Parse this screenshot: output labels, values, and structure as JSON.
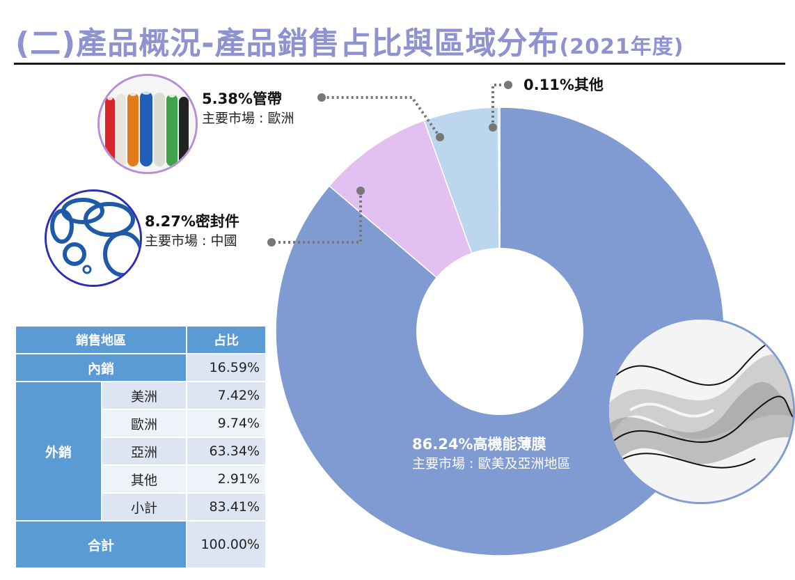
{
  "title": {
    "main": "(二)產品概況-產品銷售占比與區域分布",
    "year": "(2021年度)"
  },
  "chart_data": {
    "type": "pie",
    "variant": "donut",
    "slices": [
      {
        "label": "高機能薄膜",
        "value": 86.24,
        "display": "86.24%高機能薄膜",
        "market": "主要市場 : 歐美及亞洲地區",
        "color": "#7f9bd1"
      },
      {
        "label": "密封件",
        "value": 8.27,
        "display": "8.27%密封件",
        "market": "主要市場 : 中國",
        "color": "#e2c0f2"
      },
      {
        "label": "管帶",
        "value": 5.38,
        "display": "5.38%管帶",
        "market": "主要市場 : 歐洲",
        "color": "#bcd6ee"
      },
      {
        "label": "其他",
        "value": 0.11,
        "display": "0.11%其他",
        "market": "",
        "color": "#c8c8c8"
      }
    ]
  },
  "table": {
    "headers": [
      "銷售地區",
      "占比"
    ],
    "domestic": {
      "label": "內銷",
      "value": "16.59%"
    },
    "export": {
      "label": "外銷",
      "rows": [
        {
          "region": "美洲",
          "value": "7.42%"
        },
        {
          "region": "歐洲",
          "value": "9.74%"
        },
        {
          "region": "亞洲",
          "value": "63.34%"
        },
        {
          "region": "其他",
          "value": "2.91%"
        },
        {
          "region": "小計",
          "value": "83.41%"
        }
      ]
    },
    "total": {
      "label": "合計",
      "value": "100.00%"
    }
  },
  "colors": {
    "title": "#8e92cf",
    "table_header": "#5b9bd5",
    "table_cell": "#dde4f2"
  },
  "icons": [
    "tubes-photo",
    "seal-rings-photo",
    "film-photo"
  ]
}
